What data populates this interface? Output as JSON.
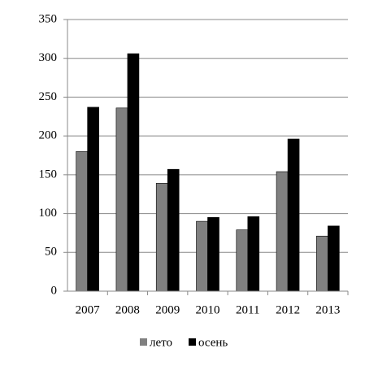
{
  "chart_data": {
    "type": "bar",
    "categories": [
      "2007",
      "2008",
      "2009",
      "2010",
      "2011",
      "2012",
      "2013"
    ],
    "series": [
      {
        "name": "лето",
        "color": "#808080",
        "values": [
          180,
          236,
          139,
          90,
          79,
          154,
          71
        ]
      },
      {
        "name": "осень",
        "color": "#000000",
        "values": [
          237,
          306,
          157,
          95,
          96,
          196,
          84
        ]
      }
    ],
    "ylim": [
      0,
      350
    ],
    "yticks": [
      0,
      50,
      100,
      150,
      200,
      250,
      300,
      350
    ],
    "grid": true
  }
}
